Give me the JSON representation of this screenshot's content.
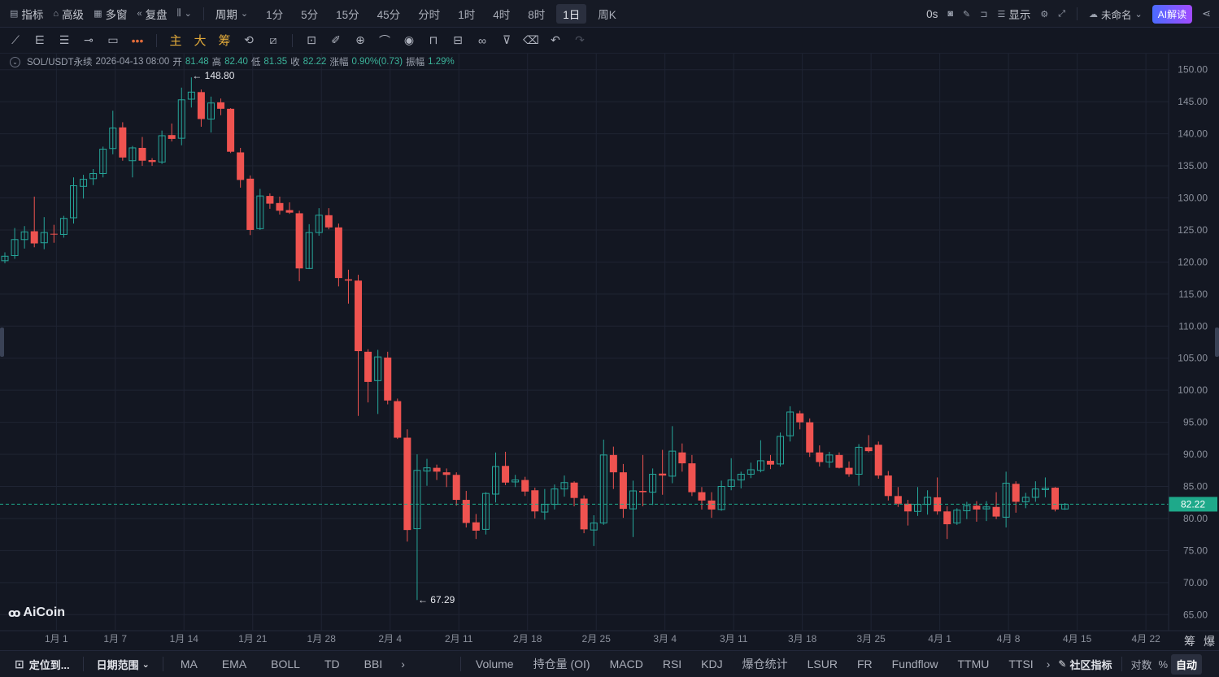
{
  "toolbar": {
    "indicators": "指标",
    "advanced": "高级",
    "multi_window": "多窗",
    "replay": "复盘",
    "period": "周期",
    "periods": [
      "1分",
      "5分",
      "15分",
      "45分",
      "分时",
      "1时",
      "4时",
      "8时",
      "1日",
      "周K"
    ],
    "active_period": "1日",
    "countdown": "0s",
    "display": "显示",
    "unnamed": "未命名",
    "ai": "AI解读"
  },
  "drawing_tools": {
    "main": "主",
    "big": "大",
    "chip": "筹"
  },
  "legend": {
    "symbol": "SOL/USDT永续",
    "datetime": "2026-04-13 08:00",
    "open_label": "开",
    "open": "81.48",
    "high_label": "高",
    "high": "82.40",
    "low_label": "低",
    "low": "81.35",
    "close_label": "收",
    "close": "82.22",
    "change_label": "涨幅",
    "change": "0.90%(0.73)",
    "amplitude_label": "振幅",
    "amplitude": "1.29%"
  },
  "logo": "AiCoin",
  "chart_data": {
    "type": "candlestick",
    "y_ticks": [
      "150.00",
      "145.00",
      "140.00",
      "135.00",
      "130.00",
      "125.00",
      "120.00",
      "115.00",
      "110.00",
      "105.00",
      "100.00",
      "95.00",
      "90.00",
      "85.00",
      "80.00",
      "75.00",
      "70.00",
      "65.00"
    ],
    "ylim": [
      62.5,
      152.5
    ],
    "x_ticks": [
      "1月 1",
      "1月 7",
      "1月 14",
      "1月 21",
      "1月 28",
      "2月 4",
      "2月 11",
      "2月 18",
      "2月 25",
      "3月 4",
      "3月 11",
      "3月 18",
      "3月 25",
      "4月 1",
      "4月 8",
      "4月 15",
      "4月 22"
    ],
    "x_tick_index": [
      5,
      11,
      18,
      25,
      32,
      39,
      46,
      53,
      60,
      67,
      74,
      81,
      88,
      95,
      102,
      109,
      116
    ],
    "last_price": "82.22",
    "high_marker": "148.80",
    "low_marker": "67.29",
    "bottom_right_labels": [
      "筹",
      "爆"
    ],
    "candles": [
      [
        0,
        120.2,
        121.5,
        119.8,
        120.9
      ],
      [
        1,
        121.0,
        125.3,
        120.5,
        123.5
      ],
      [
        2,
        123.5,
        125.6,
        122.1,
        124.7
      ],
      [
        3,
        124.8,
        130.2,
        122.3,
        122.9
      ],
      [
        4,
        123.0,
        127.0,
        122.0,
        124.6
      ],
      [
        5,
        124.4,
        125.8,
        123.0,
        124.3
      ],
      [
        6,
        124.3,
        127.2,
        123.8,
        126.8
      ],
      [
        7,
        126.9,
        133.2,
        126.0,
        131.9
      ],
      [
        8,
        131.8,
        133.6,
        129.9,
        132.9
      ],
      [
        9,
        133.0,
        134.5,
        132.0,
        133.8
      ],
      [
        10,
        133.8,
        138.0,
        133.2,
        137.6
      ],
      [
        11,
        137.7,
        143.6,
        136.8,
        140.9
      ],
      [
        12,
        141.0,
        141.8,
        135.8,
        136.3
      ],
      [
        13,
        135.8,
        138.1,
        133.2,
        137.8
      ],
      [
        14,
        137.8,
        139.5,
        135.0,
        135.8
      ],
      [
        15,
        135.9,
        136.2,
        135.0,
        135.6
      ],
      [
        16,
        135.6,
        140.5,
        135.3,
        139.7
      ],
      [
        17,
        139.8,
        141.6,
        138.8,
        139.2
      ],
      [
        18,
        139.3,
        147.2,
        138.2,
        145.3
      ],
      [
        19,
        145.4,
        148.8,
        144.1,
        146.5
      ],
      [
        20,
        146.5,
        146.9,
        141.1,
        142.3
      ],
      [
        21,
        142.3,
        145.8,
        140.2,
        144.8
      ],
      [
        22,
        144.9,
        145.5,
        142.9,
        143.9
      ],
      [
        23,
        143.9,
        144.0,
        137.0,
        137.2
      ],
      [
        24,
        137.1,
        137.8,
        131.6,
        132.8
      ],
      [
        25,
        133.0,
        133.5,
        124.2,
        125.0
      ],
      [
        26,
        125.2,
        131.4,
        125.0,
        130.3
      ],
      [
        27,
        130.3,
        130.7,
        128.3,
        129.1
      ],
      [
        28,
        129.2,
        130.2,
        127.4,
        128.0
      ],
      [
        29,
        128.1,
        129.3,
        127.5,
        127.7
      ],
      [
        30,
        127.6,
        128.0,
        117.0,
        119.0
      ],
      [
        31,
        119.0,
        125.9,
        118.9,
        124.6
      ],
      [
        32,
        124.6,
        128.4,
        124.1,
        127.3
      ],
      [
        33,
        127.3,
        128.4,
        125.1,
        125.4
      ],
      [
        34,
        125.4,
        126.0,
        116.2,
        117.5
      ],
      [
        35,
        117.3,
        118.8,
        113.5,
        117.1
      ],
      [
        36,
        117.1,
        118.0,
        96.0,
        106.1
      ],
      [
        37,
        106.0,
        106.4,
        98.1,
        101.3
      ],
      [
        38,
        101.5,
        106.3,
        96.3,
        105.2
      ],
      [
        39,
        105.1,
        106.0,
        97.8,
        98.4
      ],
      [
        40,
        98.3,
        98.7,
        92.4,
        92.6
      ],
      [
        41,
        92.6,
        93.9,
        76.4,
        78.2
      ],
      [
        42,
        78.4,
        90.0,
        67.29,
        87.5
      ],
      [
        43,
        87.4,
        89.3,
        85.1,
        87.9
      ],
      [
        44,
        87.9,
        88.4,
        86.0,
        87.3
      ],
      [
        45,
        87.2,
        87.8,
        84.9,
        86.8
      ],
      [
        46,
        86.8,
        87.2,
        82.0,
        82.9
      ],
      [
        47,
        82.9,
        84.3,
        78.6,
        79.3
      ],
      [
        48,
        79.4,
        80.7,
        76.8,
        78.1
      ],
      [
        49,
        78.3,
        84.1,
        77.5,
        83.9
      ],
      [
        50,
        83.8,
        90.3,
        82.5,
        88.1
      ],
      [
        51,
        88.2,
        90.4,
        85.2,
        85.6
      ],
      [
        52,
        85.7,
        86.8,
        84.9,
        86.0
      ],
      [
        53,
        86.0,
        86.5,
        83.5,
        84.2
      ],
      [
        54,
        84.4,
        84.8,
        80.0,
        81.1
      ],
      [
        55,
        81.0,
        84.6,
        79.8,
        82.2
      ],
      [
        56,
        82.2,
        85.3,
        81.4,
        84.6
      ],
      [
        57,
        84.6,
        86.7,
        83.4,
        85.6
      ],
      [
        58,
        85.6,
        85.8,
        81.9,
        83.2
      ],
      [
        59,
        83.1,
        83.6,
        77.7,
        78.3
      ],
      [
        60,
        78.2,
        80.5,
        75.7,
        79.3
      ],
      [
        61,
        79.3,
        92.3,
        79.0,
        89.9
      ],
      [
        62,
        89.9,
        91.2,
        84.6,
        87.2
      ],
      [
        63,
        87.2,
        88.5,
        80.1,
        81.5
      ],
      [
        64,
        81.5,
        85.9,
        77.1,
        84.3
      ],
      [
        65,
        84.3,
        89.9,
        81.9,
        84.1
      ],
      [
        66,
        84.1,
        87.8,
        82.1,
        86.9
      ],
      [
        67,
        87.0,
        90.7,
        83.7,
        86.7
      ],
      [
        68,
        86.6,
        94.4,
        85.5,
        90.5
      ],
      [
        69,
        90.3,
        91.7,
        87.3,
        88.6
      ],
      [
        70,
        88.6,
        89.9,
        83.5,
        84.1
      ],
      [
        71,
        84.1,
        84.9,
        81.4,
        82.8
      ],
      [
        72,
        82.8,
        84.1,
        80.1,
        81.4
      ],
      [
        73,
        81.4,
        85.9,
        81.2,
        85.0
      ],
      [
        74,
        85.0,
        89.4,
        84.4,
        86.0
      ],
      [
        75,
        86.0,
        87.3,
        84.7,
        86.9
      ],
      [
        76,
        86.9,
        88.7,
        86.3,
        87.6
      ],
      [
        77,
        87.5,
        92.2,
        87.2,
        89.0
      ],
      [
        78,
        89.0,
        89.9,
        87.7,
        88.4
      ],
      [
        79,
        88.5,
        93.4,
        88.1,
        92.8
      ],
      [
        80,
        92.9,
        97.5,
        92.0,
        96.6
      ],
      [
        81,
        96.4,
        96.8,
        93.9,
        95.0
      ],
      [
        82,
        95.0,
        95.6,
        89.6,
        90.3
      ],
      [
        83,
        90.3,
        91.4,
        88.1,
        88.8
      ],
      [
        84,
        88.8,
        90.4,
        87.9,
        89.9
      ],
      [
        85,
        89.9,
        90.3,
        87.8,
        87.9
      ],
      [
        86,
        87.9,
        88.9,
        86.5,
        86.9
      ],
      [
        87,
        86.9,
        91.6,
        85.1,
        91.1
      ],
      [
        88,
        91.1,
        93.0,
        90.3,
        90.5
      ],
      [
        89,
        91.5,
        92.0,
        86.2,
        86.7
      ],
      [
        90,
        86.7,
        87.4,
        82.8,
        83.5
      ],
      [
        91,
        83.5,
        84.9,
        81.8,
        82.3
      ],
      [
        92,
        82.3,
        82.9,
        78.9,
        81.1
      ],
      [
        93,
        81.1,
        84.9,
        80.4,
        82.2
      ],
      [
        94,
        82.2,
        84.4,
        80.6,
        83.3
      ],
      [
        95,
        83.3,
        86.4,
        80.6,
        81.1
      ],
      [
        96,
        81.1,
        81.9,
        76.8,
        79.1
      ],
      [
        97,
        79.3,
        81.6,
        79.0,
        81.3
      ],
      [
        98,
        81.2,
        82.6,
        79.9,
        82.0
      ],
      [
        99,
        82.0,
        82.7,
        79.5,
        81.4
      ],
      [
        100,
        81.5,
        82.7,
        79.6,
        81.8
      ],
      [
        101,
        81.8,
        84.1,
        79.9,
        80.3
      ],
      [
        102,
        80.2,
        87.3,
        78.6,
        85.5
      ],
      [
        103,
        85.4,
        85.8,
        80.9,
        82.6
      ],
      [
        104,
        82.6,
        84.0,
        81.6,
        83.3
      ],
      [
        105,
        83.3,
        85.8,
        82.6,
        84.6
      ],
      [
        106,
        84.5,
        86.4,
        83.3,
        84.7
      ],
      [
        107,
        84.8,
        84.9,
        81.1,
        81.4
      ],
      [
        108,
        81.48,
        82.4,
        81.35,
        82.22
      ]
    ]
  },
  "indicator_bar": {
    "locate": "定位到...",
    "date_range": "日期范围",
    "main_items": [
      "MA",
      "EMA",
      "BOLL",
      "TD",
      "BBI"
    ],
    "sub_items": [
      "Volume",
      "持仓量 (OI)",
      "MACD",
      "RSI",
      "KDJ",
      "爆仓统计",
      "LSUR",
      "FR",
      "Fundflow",
      "TTMU",
      "TTSI"
    ],
    "community": "社区指标",
    "log": "对数",
    "percent": "%",
    "auto": "自动"
  },
  "colors": {
    "up": "#26a69a",
    "down": "#ef5350",
    "background": "#131722",
    "grid": "#1f2433",
    "last_price_bg": "#1ea98a"
  }
}
